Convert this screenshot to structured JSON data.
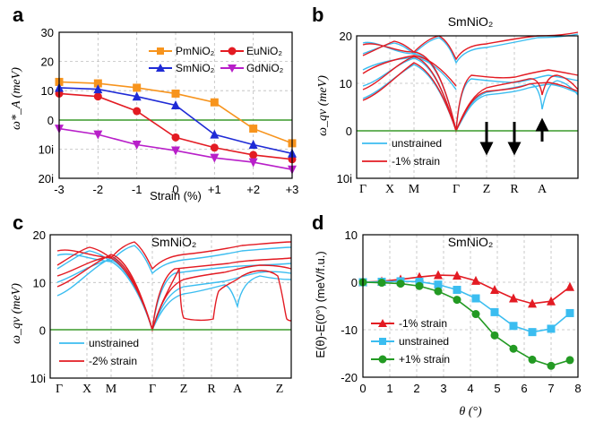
{
  "chart_data": [
    {
      "panel": "a",
      "type": "line",
      "title": "",
      "xlabel": "Strain (%)",
      "ylabel": "ω*_A (meV)",
      "categories": [
        "-3",
        "-2",
        "-1",
        "0",
        "+1",
        "+2",
        "+3"
      ],
      "x": [
        -3,
        -2,
        -1,
        0,
        1,
        2,
        3
      ],
      "ylim": [
        -20,
        30
      ],
      "ytick_labels": [
        "30",
        "20",
        "10",
        "0",
        "10i",
        "20i"
      ],
      "series": [
        {
          "name": "PmNiO2",
          "color": "#f7941d",
          "marker": "square",
          "values": [
            13,
            12.5,
            11,
            9,
            6,
            -3,
            -8
          ]
        },
        {
          "name": "EuNiO2",
          "color": "#e31b23",
          "marker": "circle",
          "values": [
            9,
            8,
            3,
            -6,
            -9.5,
            -12,
            -13.5
          ]
        },
        {
          "name": "SmNiO2",
          "color": "#1f2bd6",
          "marker": "triangle-up",
          "values": [
            11,
            10.5,
            8,
            5,
            -5,
            -8.5,
            -11.5
          ]
        },
        {
          "name": "GdNiO2",
          "color": "#b81fc9",
          "marker": "triangle-down",
          "values": [
            -3,
            -5,
            -8.5,
            -10.5,
            -13,
            -14.5,
            -17
          ]
        }
      ]
    },
    {
      "panel": "b",
      "type": "line",
      "title": "SmNiO2",
      "ylabel": "ω_qν (meV)",
      "kpoints": [
        "Γ",
        "X",
        "M",
        "Γ",
        "Z",
        "R",
        "A"
      ],
      "ylim": [
        -10,
        20
      ],
      "ytick_labels": [
        "20",
        "10",
        "0",
        "10i"
      ],
      "legend": [
        "unstrained",
        "-1% strain"
      ],
      "colors": {
        "unstrained": "#3bbdf0",
        "strained": "#e31b23"
      }
    },
    {
      "panel": "c",
      "type": "line",
      "title": "SmNiO2",
      "ylabel": "ω_qν (meV)",
      "kpoints": [
        "Γ",
        "X",
        "M",
        "Γ",
        "Z",
        "R",
        "A",
        "Z"
      ],
      "ylim": [
        -10,
        20
      ],
      "ytick_labels": [
        "20",
        "10",
        "0",
        "10i"
      ],
      "legend": [
        "unstrained",
        "-2% strain"
      ],
      "colors": {
        "unstrained": "#3bbdf0",
        "strained": "#e31b23"
      }
    },
    {
      "panel": "d",
      "type": "line",
      "title": "SmNiO2",
      "xlabel": "θ (°)",
      "ylabel": "E(θ)-E(0°) (meV/f.u.)",
      "xlim": [
        0,
        8
      ],
      "ylim": [
        -20,
        10
      ],
      "x": [
        0,
        0.7,
        1.4,
        2.1,
        2.8,
        3.5,
        4.2,
        4.9,
        5.6,
        6.3,
        7.0,
        7.7
      ],
      "series": [
        {
          "name": "-1% strain",
          "color": "#e31b23",
          "marker": "triangle-up",
          "values": [
            0,
            0.2,
            0.6,
            1.1,
            1.5,
            1.4,
            0.3,
            -1.6,
            -3.4,
            -4.5,
            -4.0,
            -1.0
          ]
        },
        {
          "name": "unstrained",
          "color": "#3bbdf0",
          "marker": "square",
          "values": [
            0,
            0.1,
            0.2,
            0.1,
            -0.5,
            -1.6,
            -3.4,
            -6.3,
            -9.2,
            -10.5,
            -9.8,
            -6.5
          ]
        },
        {
          "name": "+1% strain",
          "color": "#239a23",
          "marker": "circle",
          "values": [
            0,
            -0.1,
            -0.3,
            -0.8,
            -1.9,
            -3.7,
            -6.7,
            -11.2,
            -14.0,
            -16.3,
            -17.6,
            -16.4
          ]
        }
      ]
    }
  ]
}
